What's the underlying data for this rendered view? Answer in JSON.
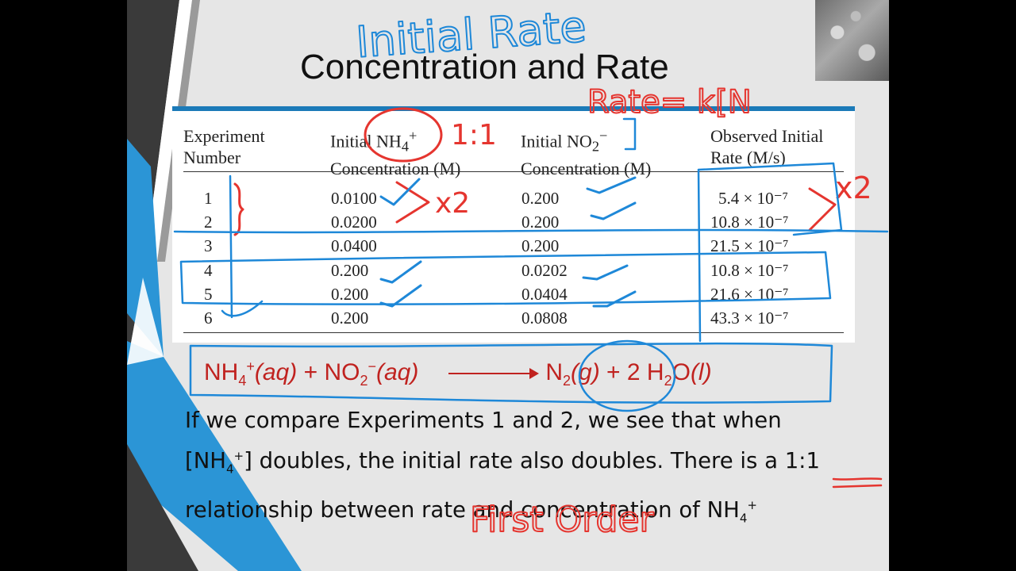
{
  "slide": {
    "title": "Concentration and Rate"
  },
  "table": {
    "headers": {
      "experiment_line1": "Experiment",
      "experiment_line2": "Number",
      "nh4_line1_prefix": "Initial NH",
      "nh4_sub": "4",
      "nh4_sup": "+",
      "nh4_line2": "Concentration (M)",
      "no2_line1_prefix": "Initial NO",
      "no2_sub": "2",
      "no2_sup": "−",
      "no2_line2": "Concentration (M)",
      "rate_line1": "Observed Initial",
      "rate_line2": "Rate (M/s)"
    },
    "rows": [
      {
        "number": "1",
        "nh4": "0.0100",
        "no2": "0.200",
        "rate": "5.4 × 10⁻⁷"
      },
      {
        "number": "2",
        "nh4": "0.0200",
        "no2": "0.200",
        "rate": "10.8 × 10⁻⁷"
      },
      {
        "number": "3",
        "nh4": "0.0400",
        "no2": "0.200",
        "rate": "21.5 × 10⁻⁷"
      },
      {
        "number": "4",
        "nh4": "0.200",
        "no2": "0.0202",
        "rate": "10.8 × 10⁻⁷"
      },
      {
        "number": "5",
        "nh4": "0.200",
        "no2": "0.0404",
        "rate": "21.6 × 10⁻⁷"
      },
      {
        "number": "6",
        "nh4": "0.200",
        "no2": "0.0808",
        "rate": "43.3 × 10⁻⁷"
      }
    ]
  },
  "equation": {
    "reactant1": "NH",
    "reactant1_sub": "4",
    "reactant1_sup": "+",
    "reactant1_state": "(aq)",
    "plus1": " + ",
    "reactant2": "NO",
    "reactant2_sub": "2",
    "reactant2_sup": "−",
    "reactant2_state": "(aq)",
    "product1": "N",
    "product1_sub": "2",
    "product1_state": "(g)",
    "plus2": " + 2 ",
    "product2": "H",
    "product2_sub": "2",
    "product2_rest": "O",
    "product2_state": "(l)"
  },
  "paragraph": {
    "line1": "If we compare Experiments 1 and 2, we see that when",
    "line2_pre": "[NH",
    "line2_sub": "4",
    "line2_sup": "+",
    "line2_post": "] doubles, the initial rate also doubles. There is a 1:1",
    "line3_pre": "relationship between rate and concentration of NH",
    "line3_sub": "4",
    "line3_sup": "+"
  },
  "handwriting": {
    "initial_rate": "Initial Rate",
    "rate_law": "Rate= k[N",
    "one_to_one": "1:1",
    "times2_left": "x2",
    "times2_right": "x2",
    "first_order": "First Order"
  },
  "colors": {
    "ink_blue": "#1e88d8",
    "ink_red": "#e5352f",
    "equation_red": "#c0221f",
    "table_bar": "#1b7ab8",
    "left_stripe_blue": "#2b95d6",
    "left_stripe_dark": "#3a3a3a"
  }
}
